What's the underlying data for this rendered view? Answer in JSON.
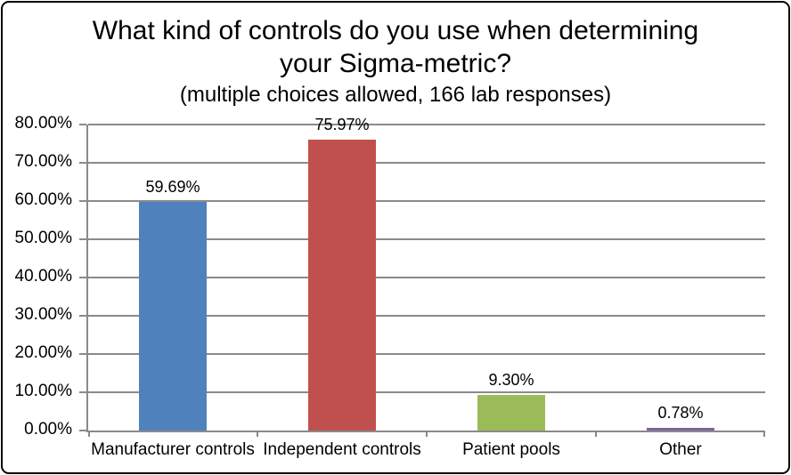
{
  "chart": {
    "title": "What kind of controls do you use when determining your Sigma-metric?",
    "subtitle": "(multiple choices allowed, 166 lab responses)"
  },
  "chart_data": {
    "type": "bar",
    "title": "What kind of controls do you use when determining your Sigma-metric?",
    "subtitle": "(multiple choices allowed, 166 lab responses)",
    "categories": [
      "Manufacturer controls",
      "Independent controls",
      "Patient pools",
      "Other"
    ],
    "values": [
      59.69,
      75.97,
      9.3,
      0.78
    ],
    "value_labels": [
      "59.69%",
      "75.97%",
      "9.30%",
      "0.78%"
    ],
    "bar_colors": [
      "#4f81bd",
      "#c0504d",
      "#9bbb59",
      "#8064a2"
    ],
    "ylim": [
      0,
      80
    ],
    "ytick_step": 10,
    "ytick_labels": [
      "0.00%",
      "10.00%",
      "20.00%",
      "30.00%",
      "40.00%",
      "50.00%",
      "60.00%",
      "70.00%",
      "80.00%"
    ],
    "grid": true,
    "legend": false,
    "axis_color": "#8a8a8a",
    "background_color": "#ffffff",
    "border_color": "#000000"
  }
}
